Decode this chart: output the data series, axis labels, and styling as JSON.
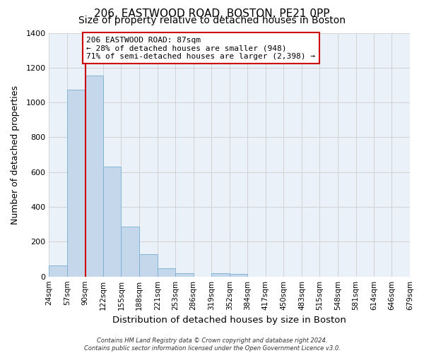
{
  "title": "206, EASTWOOD ROAD, BOSTON, PE21 0PP",
  "subtitle": "Size of property relative to detached houses in Boston",
  "xlabel": "Distribution of detached houses by size in Boston",
  "ylabel": "Number of detached properties",
  "bin_edges": [
    24,
    57,
    90,
    122,
    155,
    188,
    221,
    253,
    286,
    319,
    352,
    384,
    417,
    450,
    483,
    515,
    548,
    581,
    614,
    646,
    679
  ],
  "bar_heights": [
    65,
    1075,
    1155,
    630,
    285,
    130,
    47,
    18,
    0,
    18,
    13,
    0,
    0,
    0,
    0,
    0,
    0,
    0,
    0,
    0
  ],
  "bar_color": "#c5d8eb",
  "bar_edgecolor": "#7aaed0",
  "tick_labels": [
    "24sqm",
    "57sqm",
    "90sqm",
    "122sqm",
    "155sqm",
    "188sqm",
    "221sqm",
    "253sqm",
    "286sqm",
    "319sqm",
    "352sqm",
    "384sqm",
    "417sqm",
    "450sqm",
    "483sqm",
    "515sqm",
    "548sqm",
    "581sqm",
    "614sqm",
    "646sqm",
    "679sqm"
  ],
  "ylim": [
    0,
    1400
  ],
  "yticks": [
    0,
    200,
    400,
    600,
    800,
    1000,
    1200,
    1400
  ],
  "vline_x": 90,
  "annotation_title": "206 EASTWOOD ROAD: 87sqm",
  "annotation_line1": "← 28% of detached houses are smaller (948)",
  "annotation_line2": "71% of semi-detached houses are larger (2,398) →",
  "annotation_box_facecolor": "#ffffff",
  "annotation_box_edgecolor": "#cc0000",
  "vline_color": "#cc0000",
  "grid_color": "#cccccc",
  "plot_bg_color": "#eaf1f8",
  "fig_bg_color": "#ffffff",
  "footer1": "Contains HM Land Registry data © Crown copyright and database right 2024.",
  "footer2": "Contains public sector information licensed under the Open Government Licence v3.0.",
  "title_fontsize": 11,
  "subtitle_fontsize": 10,
  "xlabel_fontsize": 9.5,
  "ylabel_fontsize": 9,
  "tick_fontsize": 7.5,
  "annotation_fontsize": 8,
  "footer_fontsize": 6
}
